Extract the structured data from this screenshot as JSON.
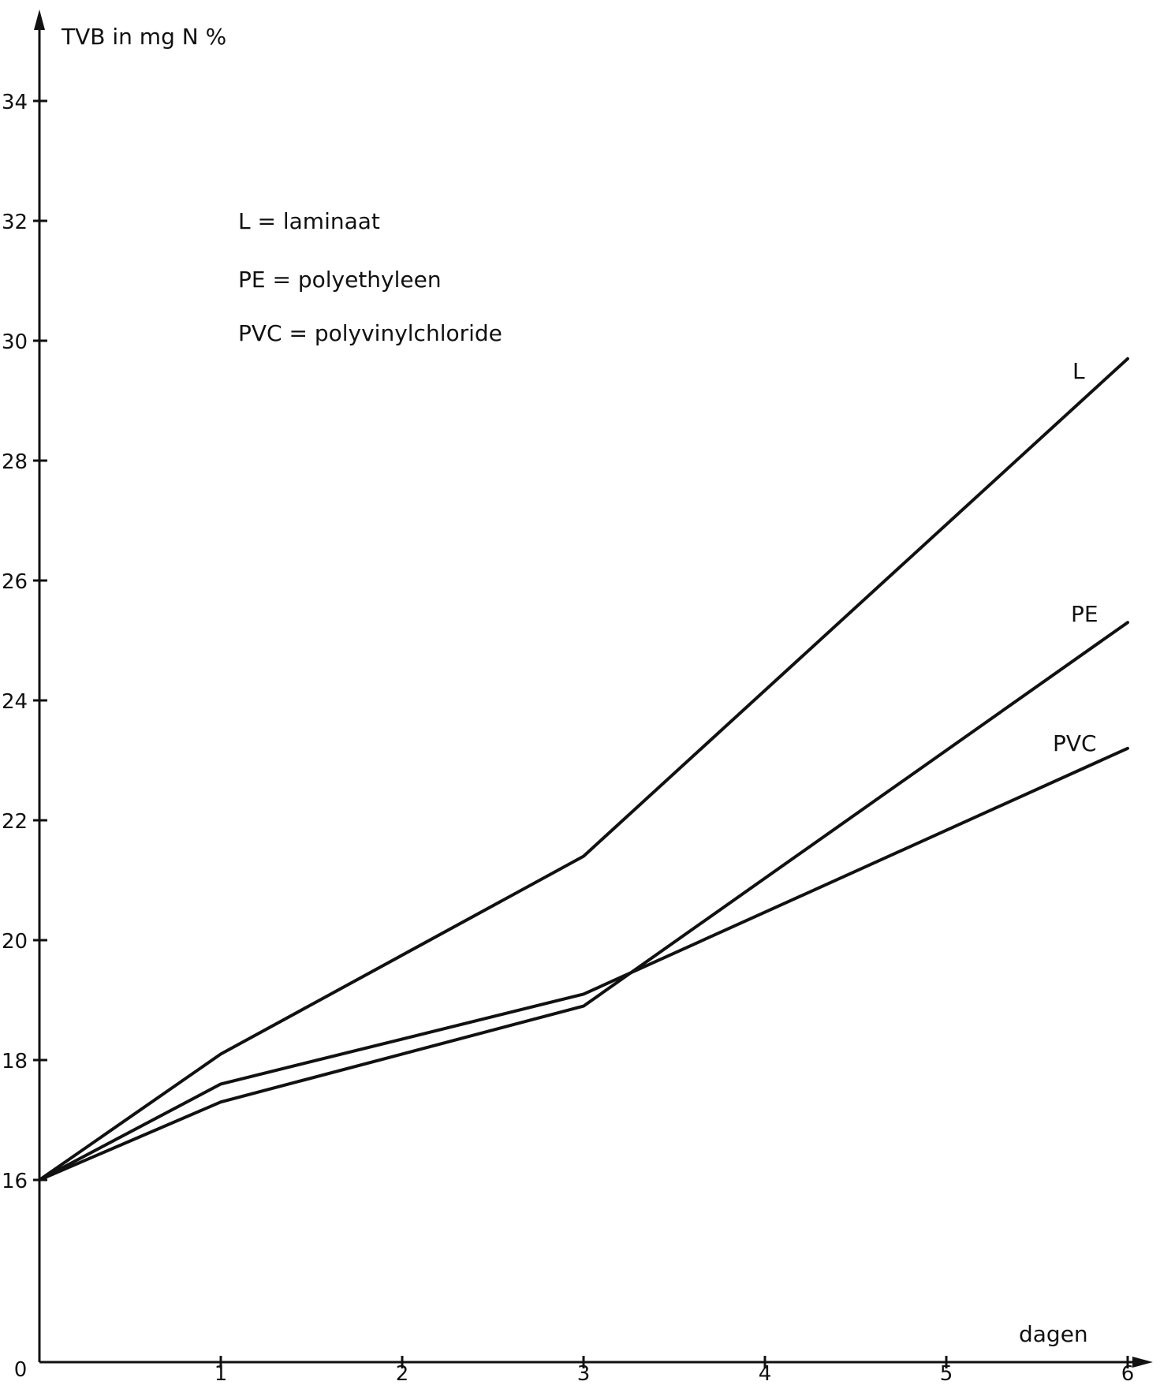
{
  "chart_data": {
    "type": "line",
    "ylabel": "TVB in mg N %",
    "xlabel": "dagen",
    "origin_label": "0",
    "x_ticks": [
      1,
      2,
      3,
      4,
      5,
      6
    ],
    "y_ticks": [
      16,
      18,
      20,
      22,
      24,
      26,
      28,
      30,
      32,
      34
    ],
    "x_range": [
      0,
      6
    ],
    "y_range": [
      15,
      35
    ],
    "y_axis_break": true,
    "grid": false,
    "legend": [
      "L = laminaat",
      "PE = polyethyleen",
      "PVC = polyvinylchloride"
    ],
    "series": [
      {
        "name": "L",
        "x": [
          0,
          1,
          3,
          6
        ],
        "y": [
          16.0,
          18.1,
          21.4,
          29.7
        ]
      },
      {
        "name": "PE",
        "x": [
          0,
          1,
          3,
          6
        ],
        "y": [
          16.0,
          17.3,
          18.9,
          25.3
        ]
      },
      {
        "name": "PVC",
        "x": [
          0,
          1,
          3,
          6
        ],
        "y": [
          16.0,
          17.6,
          19.1,
          23.2
        ]
      }
    ]
  }
}
